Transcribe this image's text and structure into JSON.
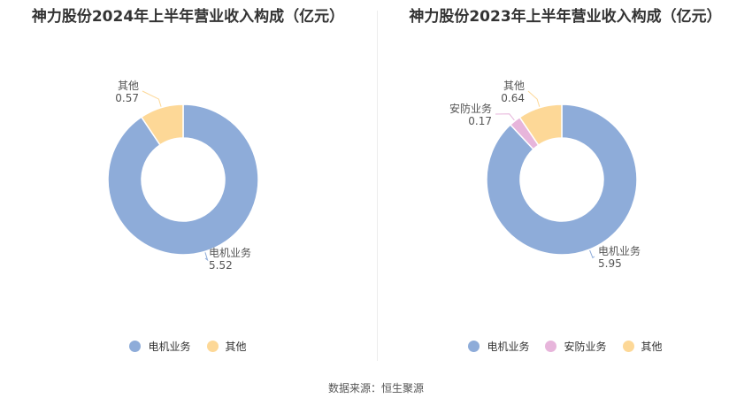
{
  "source_text": "数据来源：恒生聚源",
  "chart_data": [
    {
      "type": "pie",
      "title": "神力股份2024年上半年营业收入构成（亿元）",
      "slices": [
        {
          "label": "电机业务",
          "value": 5.52,
          "value_text": "5.52",
          "color": "#8eacd9"
        },
        {
          "label": "其他",
          "value": 0.57,
          "value_text": "0.57",
          "color": "#fdd897"
        }
      ],
      "legend_position": "bottom"
    },
    {
      "type": "pie",
      "title": "神力股份2023年上半年营业收入构成（亿元）",
      "slices": [
        {
          "label": "电机业务",
          "value": 5.95,
          "value_text": "5.95",
          "color": "#8eacd9"
        },
        {
          "label": "安防业务",
          "value": 0.17,
          "value_text": "0.17",
          "color": "#e7b5db"
        },
        {
          "label": "其他",
          "value": 0.64,
          "value_text": "0.64",
          "color": "#fdd897"
        }
      ],
      "legend_position": "bottom"
    }
  ]
}
